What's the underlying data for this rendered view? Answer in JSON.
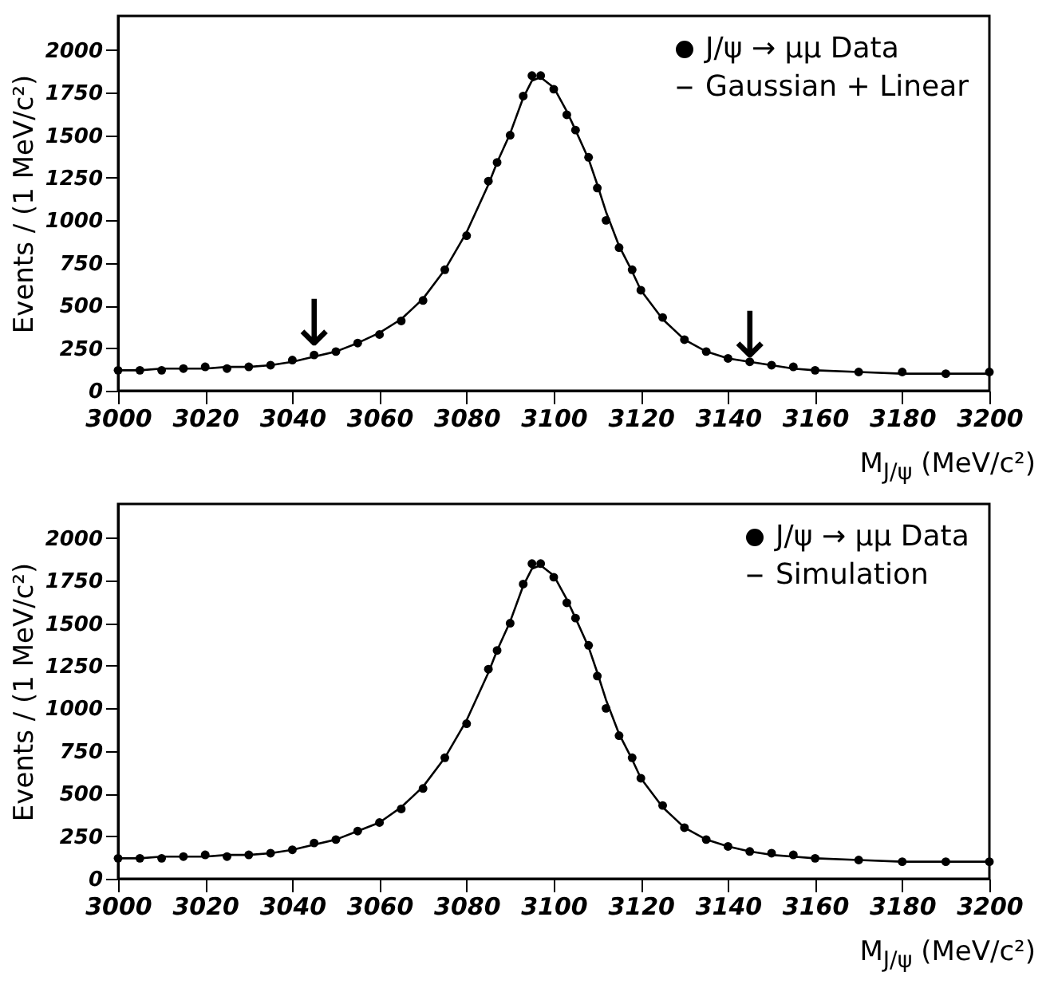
{
  "chart_data": [
    {
      "type": "scatter",
      "xlabel": "M$_{J/ψ}$ (MeV/c²)",
      "ylabel": "Events / (1 MeV/c²)",
      "xlim": [
        3000,
        3200
      ],
      "ylim": [
        0,
        2200
      ],
      "xticks": [
        3000,
        3020,
        3040,
        3060,
        3080,
        3100,
        3120,
        3140,
        3160,
        3180,
        3200
      ],
      "yticks": [
        0,
        250,
        500,
        750,
        1000,
        1250,
        1500,
        1750,
        2000
      ],
      "legend": "top right",
      "x": [
        3000,
        3005,
        3010,
        3015,
        3020,
        3025,
        3030,
        3035,
        3040,
        3045,
        3050,
        3055,
        3060,
        3065,
        3070,
        3075,
        3080,
        3085,
        3087,
        3090,
        3093,
        3095,
        3097,
        3100,
        3103,
        3105,
        3108,
        3110,
        3112,
        3115,
        3118,
        3120,
        3125,
        3130,
        3135,
        3140,
        3145,
        3150,
        3155,
        3160,
        3170,
        3180,
        3190,
        3200
      ],
      "series": [
        {
          "name": "J/ψ → μμ Data",
          "marker": "circle",
          "color": "#000000",
          "values": [
            120,
            120,
            120,
            130,
            140,
            130,
            140,
            150,
            180,
            210,
            230,
            280,
            330,
            410,
            530,
            710,
            910,
            1230,
            1340,
            1500,
            1730,
            1850,
            1850,
            1770,
            1620,
            1530,
            1370,
            1190,
            1000,
            840,
            710,
            590,
            430,
            300,
            230,
            190,
            170,
            150,
            140,
            120,
            110,
            110,
            100,
            110
          ]
        },
        {
          "name": "Gaussian + Linear",
          "type": "line",
          "color": "#000000",
          "values": [
            120,
            120,
            130,
            130,
            130,
            140,
            140,
            150,
            170,
            200,
            230,
            280,
            340,
            420,
            540,
            710,
            930,
            1210,
            1340,
            1510,
            1720,
            1820,
            1840,
            1780,
            1640,
            1530,
            1360,
            1210,
            1050,
            850,
            700,
            590,
            420,
            300,
            230,
            190,
            170,
            150,
            130,
            120,
            110,
            100,
            100,
            100
          ]
        }
      ],
      "annotations": [
        {
          "text": "↓",
          "x": 3045,
          "y": 250
        },
        {
          "text": "↓",
          "x": 3145,
          "y": 180
        }
      ]
    },
    {
      "type": "scatter",
      "xlabel": "M$_{J/ψ}$ (MeV/c²)",
      "ylabel": "Events / (1 MeV/c²)",
      "xlim": [
        3000,
        3200
      ],
      "ylim": [
        0,
        2200
      ],
      "xticks": [
        3000,
        3020,
        3040,
        3060,
        3080,
        3100,
        3120,
        3140,
        3160,
        3180,
        3200
      ],
      "yticks": [
        0,
        250,
        500,
        750,
        1000,
        1250,
        1500,
        1750,
        2000
      ],
      "legend": "top right",
      "x": [
        3000,
        3005,
        3010,
        3015,
        3020,
        3025,
        3030,
        3035,
        3040,
        3045,
        3050,
        3055,
        3060,
        3065,
        3070,
        3075,
        3080,
        3085,
        3087,
        3090,
        3093,
        3095,
        3097,
        3100,
        3103,
        3105,
        3108,
        3110,
        3112,
        3115,
        3118,
        3120,
        3125,
        3130,
        3135,
        3140,
        3145,
        3150,
        3155,
        3160,
        3170,
        3180,
        3190,
        3200
      ],
      "series": [
        {
          "name": "J/ψ → μμ Data",
          "marker": "circle",
          "color": "#000000",
          "values": [
            120,
            120,
            120,
            130,
            140,
            130,
            140,
            150,
            170,
            210,
            230,
            280,
            330,
            410,
            530,
            710,
            910,
            1230,
            1340,
            1500,
            1730,
            1850,
            1850,
            1770,
            1620,
            1530,
            1370,
            1190,
            1000,
            840,
            710,
            590,
            430,
            300,
            230,
            190,
            160,
            150,
            140,
            120,
            110,
            100,
            100,
            100
          ]
        },
        {
          "name": "Simulation",
          "type": "line",
          "color": "#000000",
          "values": [
            120,
            120,
            130,
            130,
            130,
            140,
            140,
            150,
            170,
            200,
            230,
            280,
            330,
            420,
            540,
            710,
            930,
            1210,
            1340,
            1510,
            1720,
            1820,
            1840,
            1780,
            1640,
            1530,
            1360,
            1210,
            1050,
            850,
            700,
            590,
            420,
            300,
            230,
            190,
            160,
            140,
            130,
            120,
            110,
            100,
            100,
            100
          ]
        }
      ]
    }
  ]
}
